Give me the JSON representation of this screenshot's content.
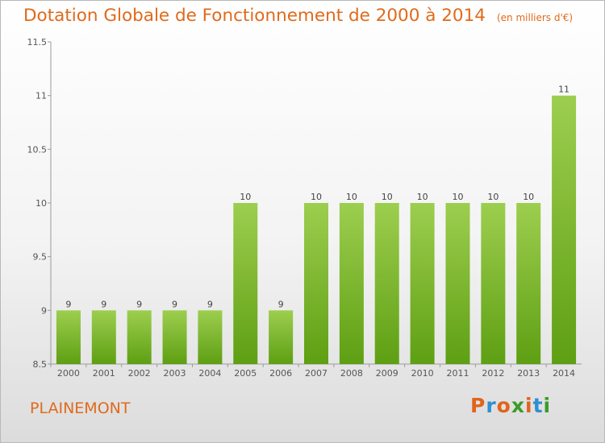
{
  "chart_data": {
    "type": "bar",
    "title": "Dotation Globale de Fonctionnement de 2000 à 2014",
    "unit": "(en milliers d'€)",
    "categories": [
      "2000",
      "2001",
      "2002",
      "2003",
      "2004",
      "2005",
      "2006",
      "2007",
      "2008",
      "2009",
      "2010",
      "2011",
      "2012",
      "2013",
      "2014"
    ],
    "values": [
      9,
      9,
      9,
      9,
      9,
      10,
      9,
      10,
      10,
      10,
      10,
      10,
      10,
      10,
      11
    ],
    "data_labels": [
      "9",
      "9",
      "9",
      "9",
      "9",
      "10",
      "9",
      "10",
      "10",
      "10",
      "10",
      "10",
      "10",
      "10",
      "11"
    ],
    "yticks": [
      8.5,
      9,
      9.5,
      10,
      10.5,
      11,
      11.5
    ],
    "ytick_labels": [
      "8.5",
      "9",
      "9.5",
      "10",
      "10.5",
      "11",
      "11.5"
    ],
    "ylim": [
      8.5,
      11.5
    ],
    "grid": false,
    "bar_color_top": "#9dce4f",
    "bar_color_bottom": "#5e9f13"
  },
  "footer": {
    "town": "PLAINEMONT",
    "logo": "Proxiti"
  },
  "logo_colors": [
    "#e0641c",
    "#2f8fd0",
    "#e0641c",
    "#3a9c28",
    "#e0641c",
    "#2f8fd0",
    "#3a9c28"
  ],
  "text_color": "#e06a1b"
}
